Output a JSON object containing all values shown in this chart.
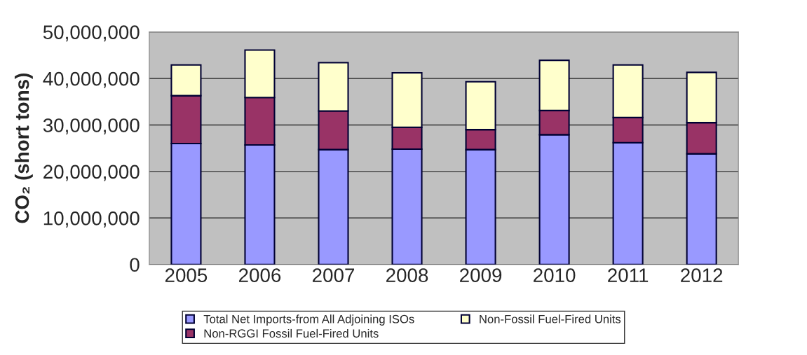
{
  "chart_data": {
    "type": "bar",
    "stacked": true,
    "ylabel": "CO₂ (short tons)",
    "categories": [
      "2005",
      "2006",
      "2007",
      "2008",
      "2009",
      "2010",
      "2011",
      "2012"
    ],
    "series": [
      {
        "name": "Total Net Imports-from All Adjoining ISOs",
        "color": "#9999ff",
        "values": [
          26000000,
          25700000,
          24700000,
          24800000,
          24700000,
          27900000,
          26200000,
          23800000
        ]
      },
      {
        "name": "Non-RGGI Fossil Fuel-Fired Units",
        "color": "#993366",
        "values": [
          10300000,
          10200000,
          8300000,
          4700000,
          4300000,
          5200000,
          5400000,
          6700000
        ]
      },
      {
        "name": "Non-Fossil Fuel-Fired Units",
        "color": "#ffffcc",
        "values": [
          6600000,
          10200000,
          10400000,
          11700000,
          10300000,
          10800000,
          11300000,
          10800000
        ]
      }
    ],
    "ylim": [
      0,
      50000000
    ],
    "yticks": [
      {
        "value": 0,
        "label": "0"
      },
      {
        "value": 10000000,
        "label": "10,000,000"
      },
      {
        "value": 20000000,
        "label": "20,000,000"
      },
      {
        "value": 30000000,
        "label": "30,000,000"
      },
      {
        "value": 40000000,
        "label": "40,000,000"
      },
      {
        "value": 50000000,
        "label": "50,000,000"
      }
    ],
    "grid": "y",
    "legend": "bottom"
  }
}
